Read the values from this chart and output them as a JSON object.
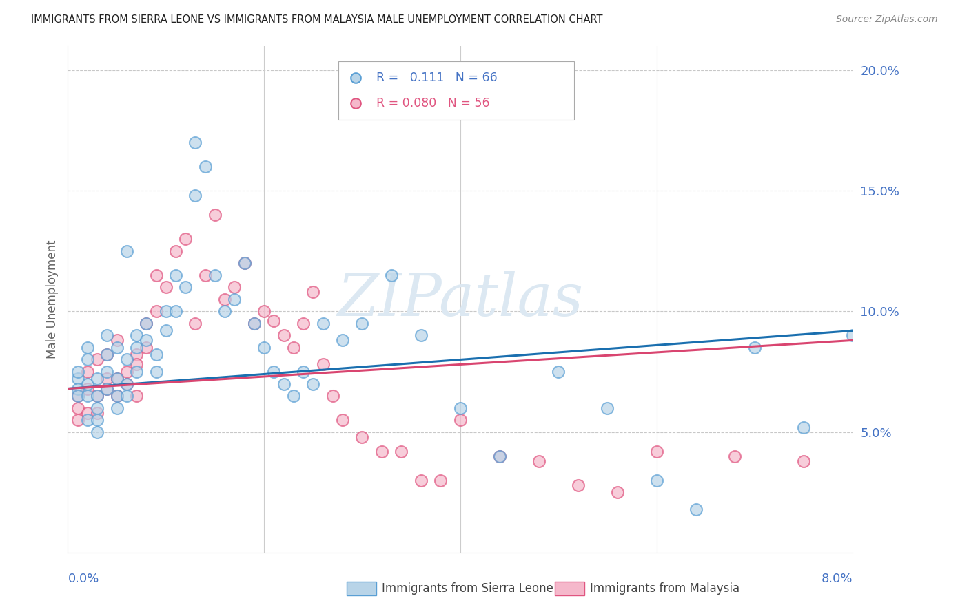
{
  "title": "IMMIGRANTS FROM SIERRA LEONE VS IMMIGRANTS FROM MALAYSIA MALE UNEMPLOYMENT CORRELATION CHART",
  "source": "Source: ZipAtlas.com",
  "ylabel": "Male Unemployment",
  "color_blue_fill": "#b8d4e8",
  "color_blue_edge": "#5a9fd4",
  "color_pink_fill": "#f5b8cb",
  "color_pink_edge": "#e05580",
  "color_blue_line": "#1a6faf",
  "color_pink_line": "#d94570",
  "color_axis_text": "#4472c4",
  "watermark_text": "ZIPatlas",
  "watermark_color": "#dce8f2",
  "R_sl": 0.111,
  "N_sl": 66,
  "R_my": 0.08,
  "N_my": 56,
  "xlim": [
    0.0,
    0.08
  ],
  "ylim": [
    0.0,
    0.21
  ],
  "yticks": [
    0.05,
    0.1,
    0.15,
    0.2
  ],
  "ytick_labels": [
    "5.0%",
    "10.0%",
    "15.0%",
    "20.0%"
  ],
  "xtick_left_label": "0.0%",
  "xtick_right_label": "8.0%",
  "legend_label_sl": "Immigrants from Sierra Leone",
  "legend_label_my": "Immigrants from Malaysia",
  "legend_text_sl": "R =   0.111   N = 66",
  "legend_text_my": "R = 0.080   N = 56",
  "sl_x": [
    0.001,
    0.001,
    0.001,
    0.001,
    0.002,
    0.002,
    0.002,
    0.002,
    0.002,
    0.003,
    0.003,
    0.003,
    0.003,
    0.003,
    0.004,
    0.004,
    0.004,
    0.004,
    0.005,
    0.005,
    0.005,
    0.005,
    0.006,
    0.006,
    0.006,
    0.006,
    0.007,
    0.007,
    0.007,
    0.008,
    0.008,
    0.009,
    0.009,
    0.01,
    0.01,
    0.011,
    0.011,
    0.012,
    0.013,
    0.013,
    0.014,
    0.015,
    0.016,
    0.017,
    0.018,
    0.019,
    0.02,
    0.021,
    0.022,
    0.023,
    0.024,
    0.025,
    0.026,
    0.028,
    0.03,
    0.033,
    0.036,
    0.04,
    0.044,
    0.05,
    0.055,
    0.06,
    0.064,
    0.07,
    0.075,
    0.08
  ],
  "sl_y": [
    0.072,
    0.068,
    0.075,
    0.065,
    0.08,
    0.07,
    0.065,
    0.055,
    0.085,
    0.072,
    0.065,
    0.06,
    0.055,
    0.05,
    0.09,
    0.075,
    0.068,
    0.082,
    0.072,
    0.065,
    0.06,
    0.085,
    0.125,
    0.08,
    0.07,
    0.065,
    0.09,
    0.085,
    0.075,
    0.095,
    0.088,
    0.082,
    0.075,
    0.1,
    0.092,
    0.115,
    0.1,
    0.11,
    0.17,
    0.148,
    0.16,
    0.115,
    0.1,
    0.105,
    0.12,
    0.095,
    0.085,
    0.075,
    0.07,
    0.065,
    0.075,
    0.07,
    0.095,
    0.088,
    0.095,
    0.115,
    0.09,
    0.06,
    0.04,
    0.075,
    0.06,
    0.03,
    0.018,
    0.085,
    0.052,
    0.09
  ],
  "my_x": [
    0.001,
    0.001,
    0.001,
    0.002,
    0.002,
    0.002,
    0.003,
    0.003,
    0.003,
    0.004,
    0.004,
    0.004,
    0.005,
    0.005,
    0.005,
    0.006,
    0.006,
    0.007,
    0.007,
    0.007,
    0.008,
    0.008,
    0.009,
    0.009,
    0.01,
    0.011,
    0.012,
    0.013,
    0.014,
    0.015,
    0.016,
    0.017,
    0.018,
    0.019,
    0.02,
    0.021,
    0.022,
    0.023,
    0.024,
    0.025,
    0.026,
    0.027,
    0.028,
    0.03,
    0.032,
    0.034,
    0.036,
    0.038,
    0.04,
    0.044,
    0.048,
    0.052,
    0.056,
    0.06,
    0.068,
    0.075
  ],
  "my_y": [
    0.065,
    0.06,
    0.055,
    0.068,
    0.075,
    0.058,
    0.065,
    0.08,
    0.058,
    0.068,
    0.082,
    0.072,
    0.065,
    0.072,
    0.088,
    0.075,
    0.07,
    0.082,
    0.065,
    0.078,
    0.095,
    0.085,
    0.1,
    0.115,
    0.11,
    0.125,
    0.13,
    0.095,
    0.115,
    0.14,
    0.105,
    0.11,
    0.12,
    0.095,
    0.1,
    0.096,
    0.09,
    0.085,
    0.095,
    0.108,
    0.078,
    0.065,
    0.055,
    0.048,
    0.042,
    0.042,
    0.03,
    0.03,
    0.055,
    0.04,
    0.038,
    0.028,
    0.025,
    0.042,
    0.04,
    0.038
  ]
}
